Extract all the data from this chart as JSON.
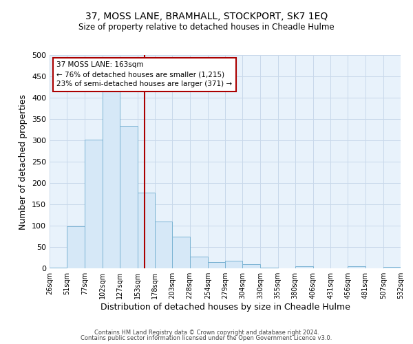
{
  "title": "37, MOSS LANE, BRAMHALL, STOCKPORT, SK7 1EQ",
  "subtitle": "Size of property relative to detached houses in Cheadle Hulme",
  "xlabel": "Distribution of detached houses by size in Cheadle Hulme",
  "ylabel": "Number of detached properties",
  "bar_left_edges": [
    26,
    51,
    77,
    102,
    127,
    153,
    178,
    203,
    228,
    254,
    279,
    304,
    330,
    355,
    380,
    406,
    431,
    456,
    481,
    507
  ],
  "bar_widths": [
    25,
    26,
    25,
    25,
    26,
    25,
    25,
    25,
    26,
    25,
    25,
    26,
    25,
    25,
    26,
    25,
    25,
    25,
    26,
    25
  ],
  "bar_heights": [
    2,
    99,
    302,
    415,
    334,
    178,
    110,
    75,
    28,
    15,
    18,
    10,
    2,
    0,
    5,
    0,
    0,
    5,
    0,
    3
  ],
  "tick_labels": [
    "26sqm",
    "51sqm",
    "77sqm",
    "102sqm",
    "127sqm",
    "153sqm",
    "178sqm",
    "203sqm",
    "228sqm",
    "254sqm",
    "279sqm",
    "304sqm",
    "330sqm",
    "355sqm",
    "380sqm",
    "406sqm",
    "431sqm",
    "456sqm",
    "481sqm",
    "507sqm",
    "532sqm"
  ],
  "tick_positions": [
    26,
    51,
    77,
    102,
    127,
    153,
    178,
    203,
    228,
    254,
    279,
    304,
    330,
    355,
    380,
    406,
    431,
    456,
    481,
    507,
    532
  ],
  "bar_color_fill": "#d6e8f7",
  "bar_color_edge": "#7ab3d3",
  "vline_x": 163,
  "vline_color": "#aa0000",
  "ylim": [
    0,
    500
  ],
  "yticks": [
    0,
    50,
    100,
    150,
    200,
    250,
    300,
    350,
    400,
    450,
    500
  ],
  "annotation_title": "37 MOSS LANE: 163sqm",
  "annotation_line1": "← 76% of detached houses are smaller (1,215)",
  "annotation_line2": "23% of semi-detached houses are larger (371) →",
  "grid_color": "#c8d8ea",
  "background_color": "#e8f2fb",
  "footer_line1": "Contains HM Land Registry data © Crown copyright and database right 2024.",
  "footer_line2": "Contains public sector information licensed under the Open Government Licence v3.0."
}
